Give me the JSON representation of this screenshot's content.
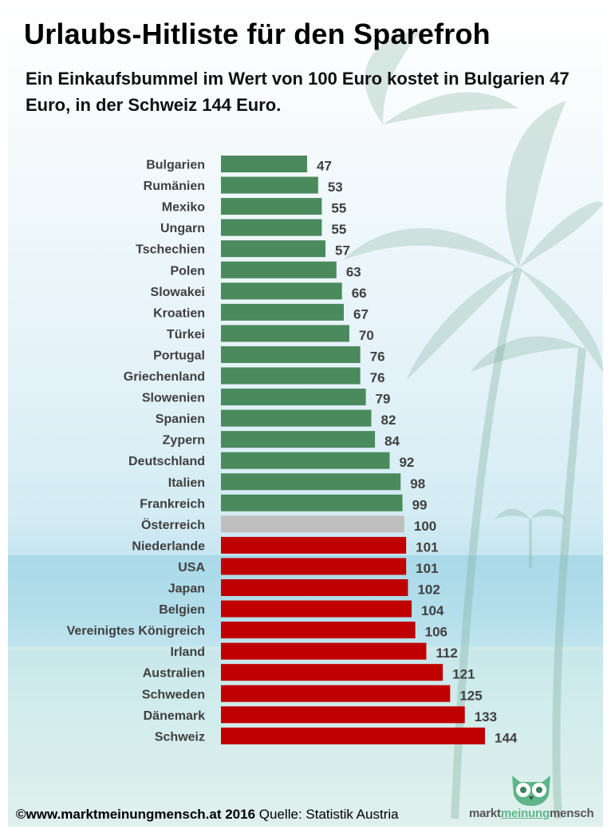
{
  "chart_data": {
    "type": "bar",
    "orientation": "horizontal",
    "title": "Urlaubs-Hitliste für den Sparefroh",
    "subtitle": "Ein Einkaufsbummel im Wert von 100 Euro kostet in Bulgarien 47 Euro, in der Schweiz 144 Euro.",
    "categories": [
      "Bulgarien",
      "Rumänien",
      "Mexiko",
      "Ungarn",
      "Tschechien",
      "Polen",
      "Slowakei",
      "Kroatien",
      "Türkei",
      "Portugal",
      "Griechenland",
      "Slowenien",
      "Spanien",
      "Zypern",
      "Deutschland",
      "Italien",
      "Frankreich",
      "Österreich",
      "Niederlande",
      "USA",
      "Japan",
      "Belgien",
      "Vereinigtes Königreich",
      "Irland",
      "Australien",
      "Schweden",
      "Dänemark",
      "Schweiz"
    ],
    "values": [
      47,
      53,
      55,
      55,
      57,
      63,
      66,
      67,
      70,
      76,
      76,
      79,
      82,
      84,
      92,
      98,
      99,
      100,
      101,
      101,
      102,
      104,
      106,
      112,
      121,
      125,
      133,
      144
    ],
    "colors": {
      "below": "#4a8a5c",
      "reference": "#bfbfbf",
      "above": "#c00000"
    },
    "reference_value": 100,
    "xlim": [
      0,
      144
    ],
    "xlabel": "",
    "ylabel": "",
    "grid": false
  },
  "footer": {
    "credit": "©www.marktmeinungmensch.at 2016",
    "source": "Quelle: Statistik Austria"
  },
  "logo": {
    "part1": "markt",
    "part2": "meinung",
    "part3": "mensch",
    "color_dark": "#555555",
    "color_green": "#5fb48a"
  }
}
